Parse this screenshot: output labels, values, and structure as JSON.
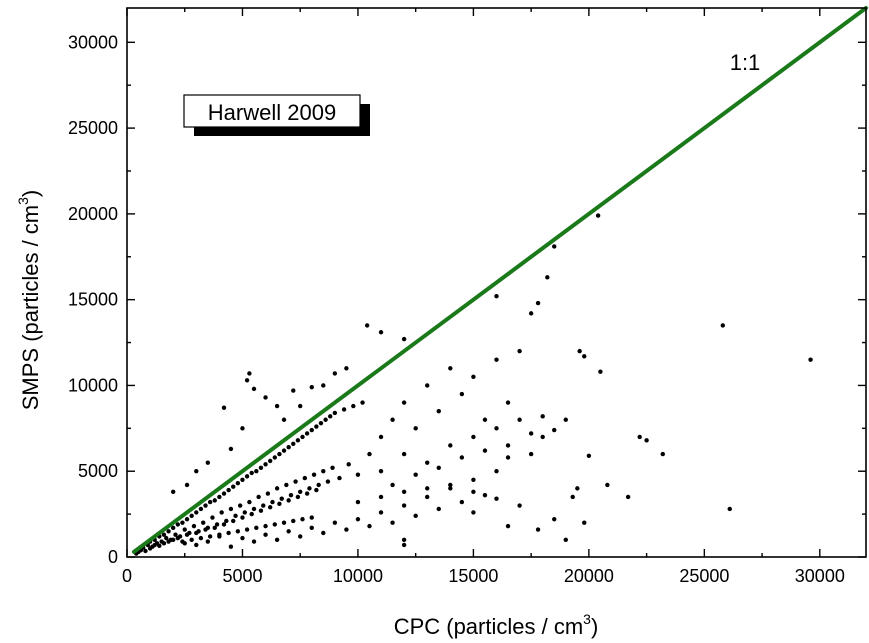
{
  "chart_data": {
    "type": "scatter",
    "xlabel": "CPC (particles / cm",
    "xlabel_sup": "3",
    "xlabel_close": ")",
    "ylabel": "SMPS (particles / cm",
    "ylabel_sup": "3",
    "ylabel_close": ")",
    "xlim": [
      0,
      32000
    ],
    "ylim": [
      0,
      32000
    ],
    "xticks": [
      0,
      5000,
      10000,
      15000,
      20000,
      25000,
      30000
    ],
    "yticks": [
      0,
      5000,
      10000,
      15000,
      20000,
      25000,
      30000
    ],
    "xtick_labels": [
      "0",
      "5000",
      "10000",
      "15000",
      "20000",
      "25000",
      "30000"
    ],
    "ytick_labels": [
      "0",
      "5000",
      "10000",
      "15000",
      "20000",
      "25000",
      "30000"
    ],
    "grid": false,
    "legend_box_text": "Harwell 2009",
    "line_label": "1:1",
    "line_color": "#1a7a1a",
    "point_color": "#000000",
    "one_to_one_line": {
      "x": [
        300,
        32000
      ],
      "y": [
        300,
        32000
      ]
    },
    "series": [
      {
        "points": [
          [
            500,
            300
          ],
          [
            700,
            550
          ],
          [
            900,
            700
          ],
          [
            1000,
            900
          ],
          [
            1100,
            600
          ],
          [
            1200,
            1000
          ],
          [
            1300,
            800
          ],
          [
            1400,
            1200
          ],
          [
            1500,
            900
          ],
          [
            1600,
            1300
          ],
          [
            1700,
            1100
          ],
          [
            1800,
            1500
          ],
          [
            1900,
            1000
          ],
          [
            2000,
            1700
          ],
          [
            2100,
            1300
          ],
          [
            2200,
            1900
          ],
          [
            2300,
            1200
          ],
          [
            2400,
            2000
          ],
          [
            2500,
            1600
          ],
          [
            2600,
            2200
          ],
          [
            2700,
            1400
          ],
          [
            2800,
            2400
          ],
          [
            2900,
            1800
          ],
          [
            3000,
            2600
          ],
          [
            3100,
            1500
          ],
          [
            3200,
            2800
          ],
          [
            3300,
            2000
          ],
          [
            3400,
            3000
          ],
          [
            3500,
            1700
          ],
          [
            3600,
            3200
          ],
          [
            3700,
            2300
          ],
          [
            3800,
            3300
          ],
          [
            3900,
            1900
          ],
          [
            4000,
            3500
          ],
          [
            4100,
            2600
          ],
          [
            4200,
            3700
          ],
          [
            4300,
            2100
          ],
          [
            4400,
            3900
          ],
          [
            4500,
            2800
          ],
          [
            4600,
            4100
          ],
          [
            4700,
            2400
          ],
          [
            4800,
            4300
          ],
          [
            4900,
            3000
          ],
          [
            5000,
            4500
          ],
          [
            5100,
            2600
          ],
          [
            5200,
            4700
          ],
          [
            5300,
            3200
          ],
          [
            5400,
            4900
          ],
          [
            5500,
            2800
          ],
          [
            5600,
            5000
          ],
          [
            5700,
            3500
          ],
          [
            5800,
            5200
          ],
          [
            5900,
            3000
          ],
          [
            6000,
            5400
          ],
          [
            6100,
            3700
          ],
          [
            6200,
            5600
          ],
          [
            6300,
            3200
          ],
          [
            6400,
            5800
          ],
          [
            6500,
            4000
          ],
          [
            6600,
            6000
          ],
          [
            6700,
            3400
          ],
          [
            6800,
            6200
          ],
          [
            6900,
            4200
          ],
          [
            7000,
            6400
          ],
          [
            7100,
            3600
          ],
          [
            7200,
            6600
          ],
          [
            7300,
            4400
          ],
          [
            7400,
            6800
          ],
          [
            7500,
            3800
          ],
          [
            7600,
            7000
          ],
          [
            7700,
            4600
          ],
          [
            7800,
            7200
          ],
          [
            7900,
            4000
          ],
          [
            8000,
            7400
          ],
          [
            8100,
            4800
          ],
          [
            8200,
            7600
          ],
          [
            8300,
            4200
          ],
          [
            8400,
            7800
          ],
          [
            8500,
            5000
          ],
          [
            8600,
            8000
          ],
          [
            8700,
            4400
          ],
          [
            8800,
            8200
          ],
          [
            8900,
            5200
          ],
          [
            9000,
            8400
          ],
          [
            9200,
            4600
          ],
          [
            9400,
            8600
          ],
          [
            9600,
            5400
          ],
          [
            9800,
            8800
          ],
          [
            10000,
            4800
          ],
          [
            10200,
            9000
          ],
          [
            2000,
            3800
          ],
          [
            2600,
            4200
          ],
          [
            3000,
            5000
          ],
          [
            3500,
            5500
          ],
          [
            4200,
            8700
          ],
          [
            4500,
            6300
          ],
          [
            5000,
            7500
          ],
          [
            5200,
            10300
          ],
          [
            5300,
            10700
          ],
          [
            5500,
            9800
          ],
          [
            6000,
            9300
          ],
          [
            6500,
            8800
          ],
          [
            6800,
            8000
          ],
          [
            7200,
            9700
          ],
          [
            7500,
            8800
          ],
          [
            8000,
            9900
          ],
          [
            8500,
            10000
          ],
          [
            9000,
            10700
          ],
          [
            9500,
            11000
          ],
          [
            10400,
            13500
          ],
          [
            11000,
            13100
          ],
          [
            12000,
            12700
          ],
          [
            2500,
            800
          ],
          [
            3000,
            700
          ],
          [
            3500,
            900
          ],
          [
            4000,
            1200
          ],
          [
            4500,
            600
          ],
          [
            5000,
            1100
          ],
          [
            5500,
            900
          ],
          [
            6000,
            1300
          ],
          [
            6500,
            1000
          ],
          [
            7000,
            1500
          ],
          [
            7500,
            1200
          ],
          [
            8000,
            1700
          ],
          [
            8500,
            1400
          ],
          [
            9000,
            2000
          ],
          [
            9500,
            1600
          ],
          [
            10000,
            2200
          ],
          [
            10500,
            1800
          ],
          [
            11000,
            2600
          ],
          [
            11500,
            2000
          ],
          [
            12000,
            3000
          ],
          [
            12500,
            2400
          ],
          [
            13000,
            3500
          ],
          [
            13500,
            2800
          ],
          [
            14000,
            4000
          ],
          [
            14500,
            3200
          ],
          [
            15000,
            4500
          ],
          [
            15500,
            3600
          ],
          [
            16000,
            5000
          ],
          [
            10500,
            6000
          ],
          [
            11000,
            7000
          ],
          [
            11500,
            8000
          ],
          [
            12000,
            9000
          ],
          [
            12500,
            7500
          ],
          [
            13000,
            10000
          ],
          [
            13500,
            8500
          ],
          [
            14000,
            11000
          ],
          [
            14500,
            9500
          ],
          [
            15000,
            10500
          ],
          [
            15500,
            8000
          ],
          [
            16000,
            11500
          ],
          [
            16500,
            9000
          ],
          [
            17000,
            12000
          ],
          [
            11000,
            5000
          ],
          [
            12000,
            6000
          ],
          [
            13000,
            5500
          ],
          [
            14000,
            6500
          ],
          [
            15000,
            7000
          ],
          [
            16000,
            7500
          ],
          [
            16500,
            6500
          ],
          [
            17000,
            8000
          ],
          [
            17500,
            7200
          ],
          [
            18000,
            8200
          ],
          [
            11500,
            4200
          ],
          [
            12500,
            4800
          ],
          [
            13500,
            5200
          ],
          [
            14500,
            5800
          ],
          [
            15500,
            6200
          ],
          [
            16500,
            5800
          ],
          [
            17500,
            6000
          ],
          [
            18000,
            7000
          ],
          [
            18500,
            7400
          ],
          [
            19000,
            8000
          ],
          [
            10000,
            3200
          ],
          [
            11000,
            3500
          ],
          [
            12000,
            3800
          ],
          [
            13000,
            4000
          ],
          [
            14000,
            4200
          ],
          [
            15000,
            3800
          ],
          [
            16000,
            3400
          ],
          [
            17000,
            3000
          ],
          [
            17800,
            1600
          ],
          [
            18500,
            2200
          ],
          [
            19000,
            1000
          ],
          [
            19300,
            3500
          ],
          [
            19500,
            4000
          ],
          [
            19800,
            2000
          ],
          [
            12000,
            700
          ],
          [
            12000,
            1000
          ],
          [
            16500,
            1800
          ],
          [
            15000,
            2600
          ],
          [
            16000,
            15200
          ],
          [
            17500,
            14200
          ],
          [
            17800,
            14800
          ],
          [
            18200,
            16300
          ],
          [
            18500,
            18100
          ],
          [
            19600,
            12000
          ],
          [
            19800,
            11700
          ],
          [
            20000,
            5900
          ],
          [
            20400,
            19900
          ],
          [
            20500,
            10800
          ],
          [
            20800,
            4200
          ],
          [
            21700,
            3500
          ],
          [
            22200,
            7000
          ],
          [
            22500,
            6800
          ],
          [
            23200,
            6000
          ],
          [
            25800,
            13500
          ],
          [
            26100,
            2800
          ],
          [
            29600,
            11500
          ],
          [
            400,
            200
          ],
          [
            600,
            400
          ],
          [
            800,
            350
          ],
          [
            1000,
            500
          ],
          [
            1200,
            700
          ],
          [
            1400,
            650
          ],
          [
            1600,
            800
          ],
          [
            1800,
            900
          ],
          [
            2000,
            1000
          ],
          [
            2200,
            1100
          ],
          [
            2400,
            900
          ],
          [
            2600,
            1300
          ],
          [
            2800,
            1000
          ],
          [
            3000,
            1400
          ],
          [
            3200,
            1100
          ],
          [
            3400,
            1600
          ],
          [
            3600,
            1200
          ],
          [
            3800,
            1700
          ],
          [
            4000,
            1300
          ],
          [
            4200,
            1900
          ],
          [
            4400,
            1400
          ],
          [
            4600,
            2100
          ],
          [
            4800,
            1500
          ],
          [
            5000,
            2300
          ],
          [
            5200,
            1600
          ],
          [
            5400,
            2500
          ],
          [
            5600,
            1700
          ],
          [
            5800,
            2700
          ],
          [
            6000,
            1800
          ],
          [
            6200,
            2900
          ],
          [
            6400,
            1900
          ],
          [
            6600,
            3100
          ],
          [
            6800,
            2000
          ],
          [
            7000,
            3300
          ],
          [
            7200,
            2100
          ],
          [
            7400,
            3500
          ],
          [
            7600,
            2200
          ],
          [
            7800,
            3700
          ],
          [
            8000,
            2300
          ],
          [
            8200,
            3900
          ]
        ]
      }
    ]
  }
}
